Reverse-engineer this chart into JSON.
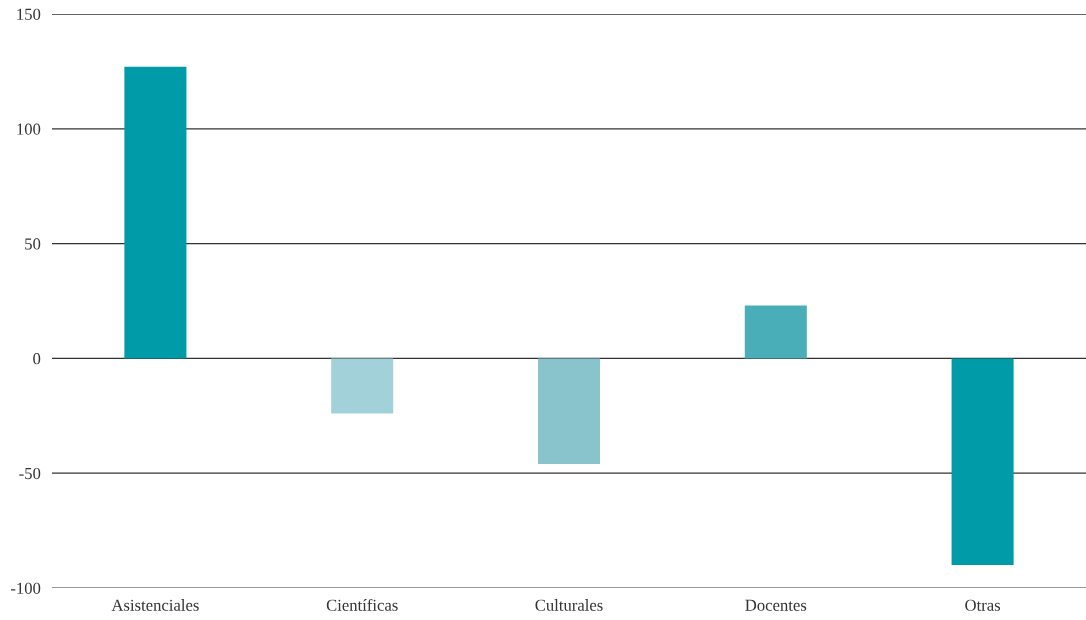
{
  "chart_data": {
    "type": "bar",
    "categories": [
      "Asistenciales",
      "Científicas",
      "Culturales",
      "Docentes",
      "Otras"
    ],
    "values": [
      127,
      -24,
      -46,
      23,
      -90
    ],
    "colors": [
      "#009ba8",
      "#a3d1d9",
      "#89c4cd",
      "#4aaeb9",
      "#009ba8"
    ],
    "ylim": [
      -100,
      150
    ],
    "yticks": [
      -100,
      -50,
      0,
      50,
      100,
      150
    ],
    "grid": "y"
  }
}
